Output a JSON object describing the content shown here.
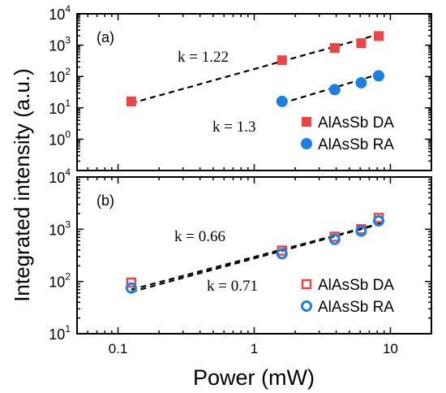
{
  "chart_data": [
    {
      "type": "scatter",
      "panel_label": "(a)",
      "xscale": "log",
      "yscale": "log",
      "xlim": [
        0.05,
        20
      ],
      "ylim": [
        0.1,
        10000
      ],
      "xticks": [
        0.1,
        1,
        10
      ],
      "yticks": [
        {
          "base": "10",
          "exp": "0",
          "value": 1
        },
        {
          "base": "10",
          "exp": "1",
          "value": 10
        },
        {
          "base": "10",
          "exp": "2",
          "value": 100
        },
        {
          "base": "10",
          "exp": "3",
          "value": 1000
        },
        {
          "base": "10",
          "exp": "4",
          "value": 10000
        }
      ],
      "series": [
        {
          "name": "AlAsSb DA",
          "marker": "square",
          "filled": true,
          "color": "#ee4444",
          "x": [
            0.125,
            1.6,
            3.9,
            6.1,
            8.2
          ],
          "y": [
            16,
            330,
            810,
            1150,
            1950
          ]
        },
        {
          "name": "AlAsSb RA",
          "marker": "circle",
          "filled": true,
          "color": "#1a7fe6",
          "x": [
            1.6,
            3.9,
            6.1,
            8.2
          ],
          "y": [
            16,
            38,
            63,
            105
          ]
        }
      ],
      "fits": [
        {
          "label": "k = 1.22",
          "x": [
            0.125,
            8.5
          ],
          "y": [
            14,
            2300
          ]
        },
        {
          "label": "k = 1.3",
          "x": [
            1.6,
            8.5
          ],
          "y": [
            14,
            123
          ]
        }
      ],
      "legend": "bottom-right"
    },
    {
      "type": "scatter",
      "panel_label": "(b)",
      "xscale": "log",
      "yscale": "log",
      "xlim": [
        0.05,
        20
      ],
      "ylim": [
        10,
        10000
      ],
      "xticks": [
        0.1,
        1,
        10
      ],
      "yticks": [
        {
          "base": "10",
          "exp": "1",
          "value": 10
        },
        {
          "base": "10",
          "exp": "2",
          "value": 100
        },
        {
          "base": "10",
          "exp": "3",
          "value": 1000
        },
        {
          "base": "10",
          "exp": "4",
          "value": 10000
        }
      ],
      "series": [
        {
          "name": "AlAsSb DA",
          "marker": "square",
          "filled": false,
          "color": "#ee4444",
          "x": [
            0.125,
            1.6,
            3.9,
            6.1,
            8.2
          ],
          "y": [
            95,
            390,
            720,
            1000,
            1650
          ]
        },
        {
          "name": "AlAsSb RA",
          "marker": "circle",
          "filled": false,
          "color": "#1a7fe6",
          "x": [
            0.125,
            1.6,
            3.9,
            6.1,
            8.2
          ],
          "y": [
            75,
            340,
            640,
            920,
            1450
          ]
        }
      ],
      "fits": [
        {
          "label": "k = 0.66",
          "x": [
            0.125,
            8.5
          ],
          "y": [
            70,
            1300
          ]
        },
        {
          "label": "k = 0.71",
          "x": [
            0.125,
            8.5
          ],
          "y": [
            63,
            1270
          ]
        }
      ],
      "legend": "bottom-right"
    }
  ],
  "xlabel": "Power (mW)",
  "ylabel": "Integrated intensity (a.u.)"
}
